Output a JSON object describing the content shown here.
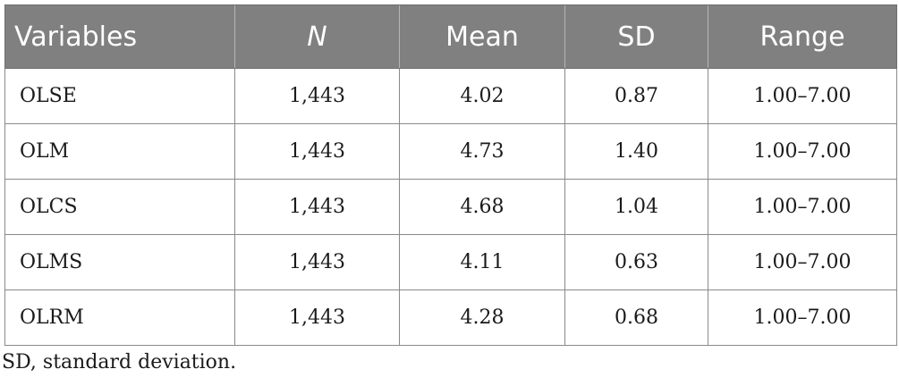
{
  "table": {
    "headers": [
      "Variables",
      "N",
      "Mean",
      "SD",
      "Range"
    ],
    "rows": [
      [
        "OLSE",
        "1,443",
        "4.02",
        "0.87",
        "1.00–7.00"
      ],
      [
        "OLM",
        "1,443",
        "4.73",
        "1.40",
        "1.00–7.00"
      ],
      [
        "OLCS",
        "1,443",
        "4.68",
        "1.04",
        "1.00–7.00"
      ],
      [
        "OLMS",
        "1,443",
        "4.11",
        "0.63",
        "1.00–7.00"
      ],
      [
        "OLRM",
        "1,443",
        "4.28",
        "0.68",
        "1.00–7.00"
      ]
    ]
  },
  "footnote": "SD, standard deviation.",
  "colors": {
    "header_bg": "#808080",
    "header_text": "#ffffff",
    "border": "#8a8a8a"
  }
}
